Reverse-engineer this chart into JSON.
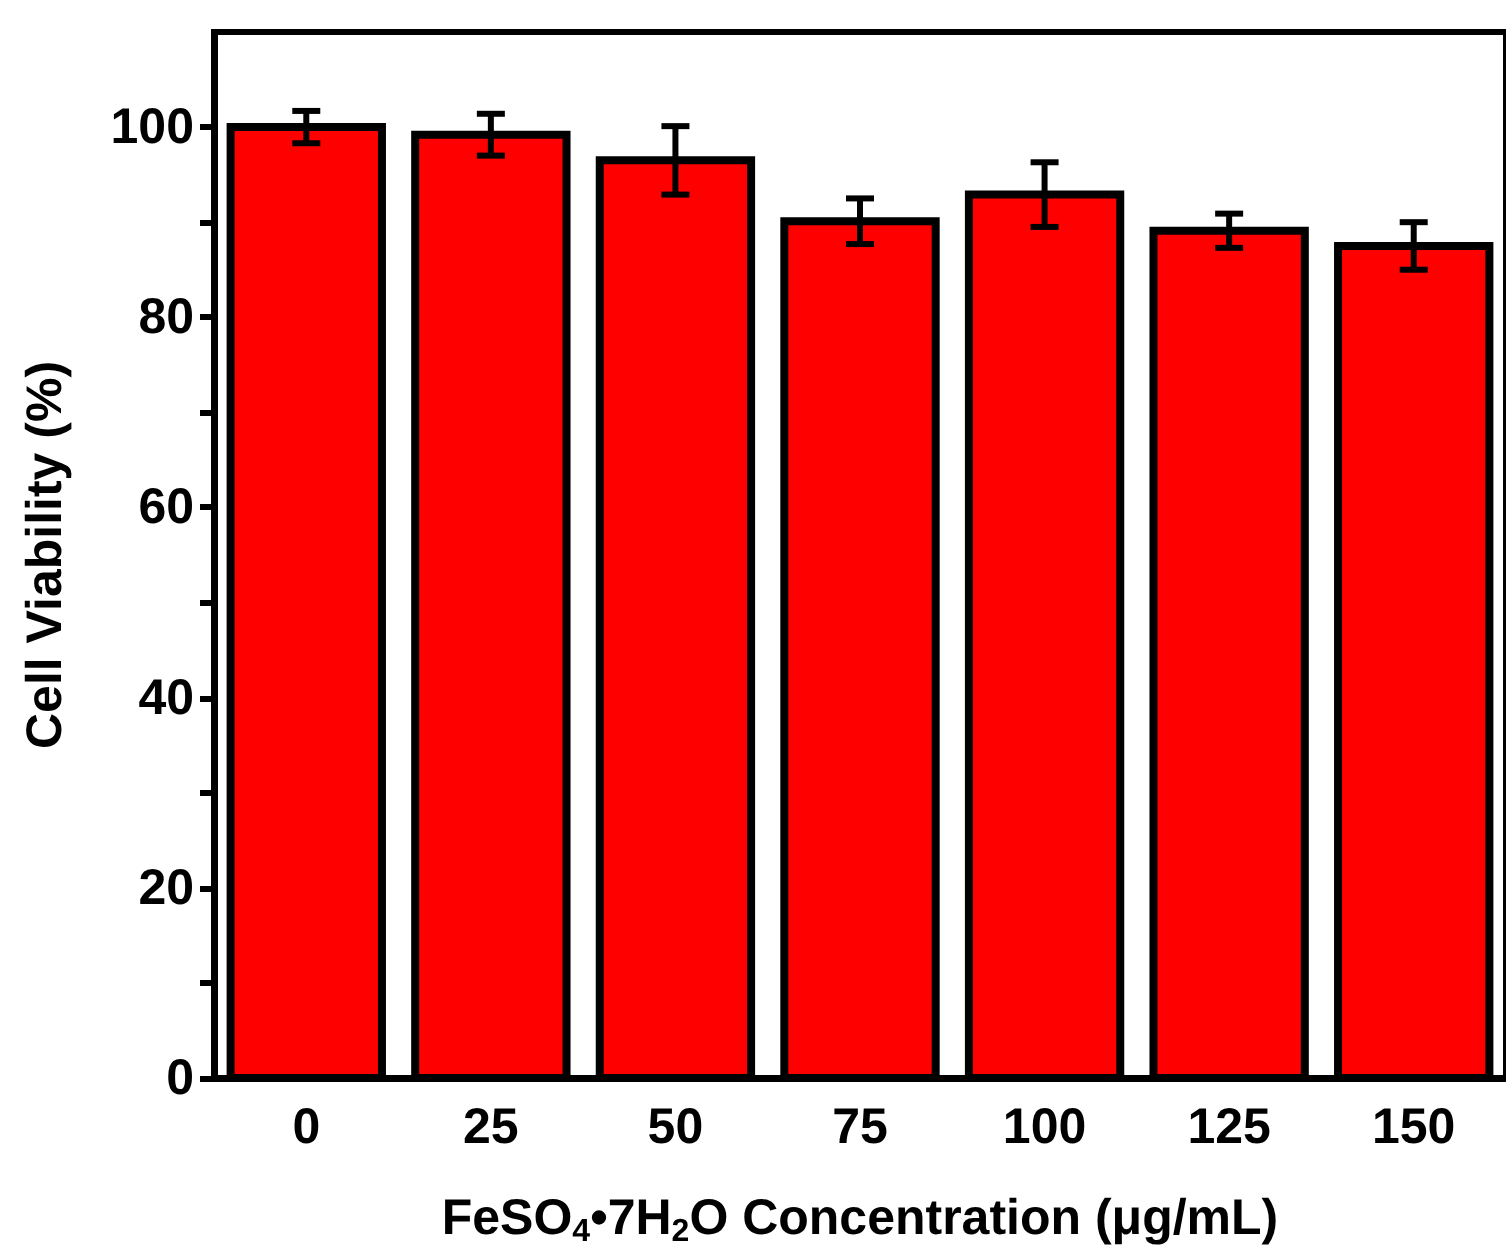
{
  "chart_data": {
    "type": "bar",
    "xlabel": "FeSO$_{4}$•7H$_{2}$O Concentration (μg/mL)",
    "ylabel": "Cell Viability (%)",
    "categories": [
      "0",
      "25",
      "50",
      "75",
      "100",
      "125",
      "150"
    ],
    "values": [
      100,
      99.2,
      96.5,
      90.1,
      92.9,
      89.1,
      87.5
    ],
    "errors": [
      1.7,
      2.2,
      3.6,
      2.4,
      3.4,
      1.8,
      2.5
    ],
    "color": "#ff0000",
    "ylim": [
      0,
      110
    ],
    "yticks": [
      0,
      {
        "value": 10,
        "label": null
      },
      20,
      {
        "value": 30,
        "label": null
      },
      40,
      {
        "value": 50,
        "label": null
      },
      60,
      {
        "value": 70,
        "label": null
      },
      80,
      {
        "value": 90,
        "label": null
      },
      100
    ],
    "grid": false
  }
}
